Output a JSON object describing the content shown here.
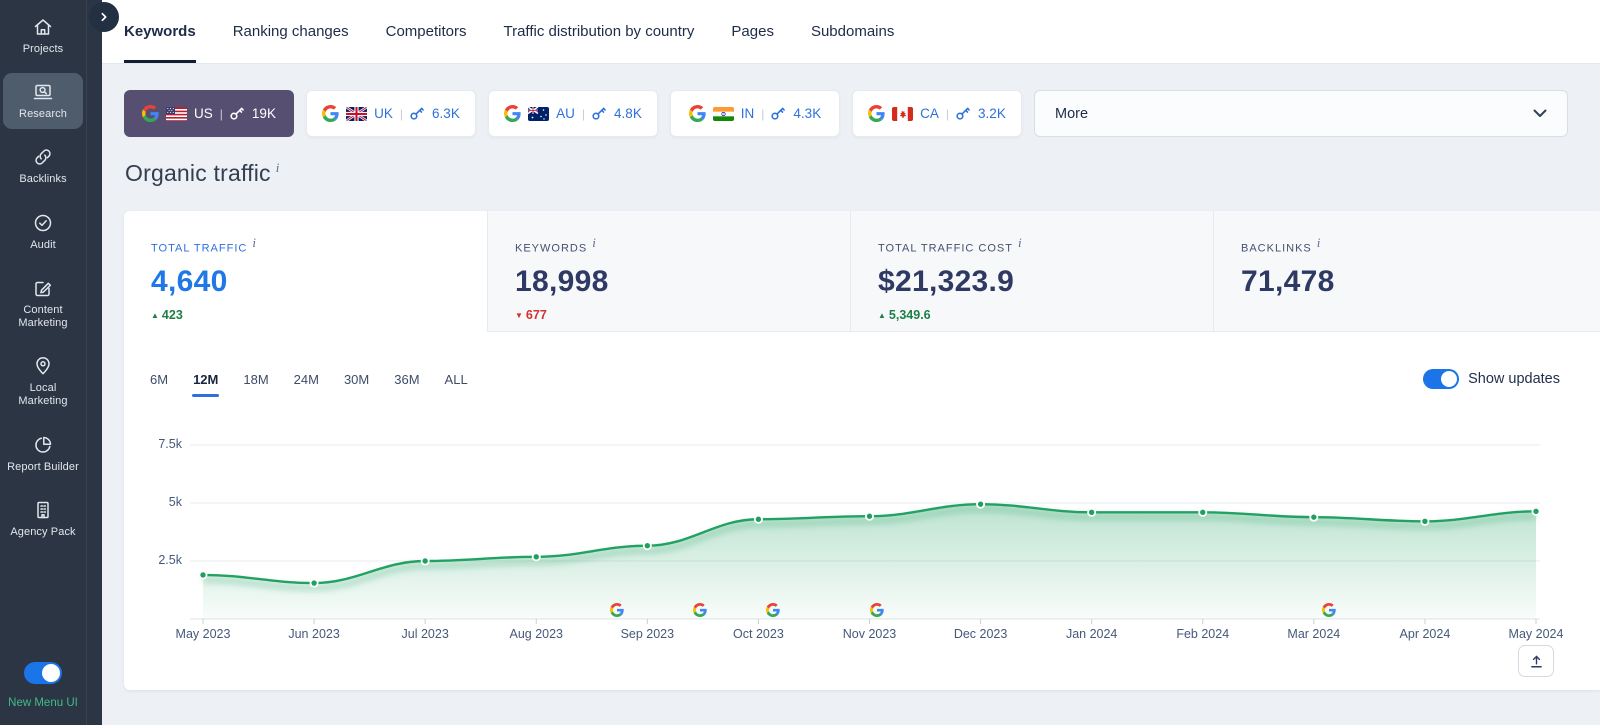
{
  "colors": {
    "sidebar_bg": "#2b3543",
    "sidebar_active_item_bg": "#4e5c6c",
    "accent_blue": "#1f78e6",
    "toggle_blue": "#1b74e8",
    "selected_country_bg": "#574f71",
    "chart_line_green": "#22a163",
    "positive_green": "#1e7e46",
    "negative_red": "#d62f2f",
    "new_menu_label_green": "#3fbd8a"
  },
  "sidebar": {
    "items": [
      {
        "label": "Projects",
        "icon": "home-icon",
        "active": false
      },
      {
        "label": "Research",
        "icon": "research-icon",
        "active": true
      },
      {
        "label": "Backlinks",
        "icon": "link-icon",
        "active": false
      },
      {
        "label": "Audit",
        "icon": "audit-check-icon",
        "active": false
      },
      {
        "label": "Content Marketing",
        "icon": "content-pen-icon",
        "active": false
      },
      {
        "label": "Local Marketing",
        "icon": "map-pin-icon",
        "active": false
      },
      {
        "label": "Report Builder",
        "icon": "pie-chart-icon",
        "active": false
      },
      {
        "label": "Agency Pack",
        "icon": "building-icon",
        "active": false
      }
    ],
    "new_menu_toggle": {
      "label": "New Menu UI",
      "state": "on"
    }
  },
  "topnav": {
    "tabs": [
      {
        "label": "Keywords",
        "active": true
      },
      {
        "label": "Ranking changes",
        "active": false
      },
      {
        "label": "Competitors",
        "active": false
      },
      {
        "label": "Traffic distribution by country",
        "active": false
      },
      {
        "label": "Pages",
        "active": false
      },
      {
        "label": "Subdomains",
        "active": false
      }
    ]
  },
  "filters": {
    "countries": [
      {
        "code": "US",
        "count": "19K",
        "selected": true
      },
      {
        "code": "UK",
        "count": "6.3K",
        "selected": false
      },
      {
        "code": "AU",
        "count": "4.8K",
        "selected": false
      },
      {
        "code": "IN",
        "count": "4.3K",
        "selected": false
      },
      {
        "code": "CA",
        "count": "3.2K",
        "selected": false
      }
    ],
    "separator": "|",
    "more_label": "More"
  },
  "page": {
    "title": "Organic traffic",
    "info_glyph": "i"
  },
  "stats": [
    {
      "label": "TOTAL TRAFFIC",
      "value": "4,640",
      "change": "423",
      "direction": "up",
      "selected": true
    },
    {
      "label": "KEYWORDS",
      "value": "18,998",
      "change": "677",
      "direction": "down",
      "selected": false
    },
    {
      "label": "TOTAL TRAFFIC COST",
      "value": "$21,323.9",
      "change": "5,349.6",
      "direction": "up",
      "selected": false
    },
    {
      "label": "BACKLINKS",
      "value": "71,478",
      "change": "",
      "direction": "",
      "selected": false
    }
  ],
  "chart_controls": {
    "ranges": [
      "6M",
      "12M",
      "18M",
      "24M",
      "30M",
      "36M",
      "ALL"
    ],
    "active_range": "12M",
    "show_updates_label": "Show updates",
    "show_updates_on": true
  },
  "chart_data": {
    "type": "area",
    "title": "Organic traffic",
    "x": [
      "May 2023",
      "Jun 2023",
      "Jul 2023",
      "Aug 2023",
      "Sep 2023",
      "Oct 2023",
      "Nov 2023",
      "Dec 2023",
      "Jan 2024",
      "Feb 2024",
      "Mar 2024",
      "Apr 2024",
      "May 2024"
    ],
    "series": [
      {
        "name": "Organic traffic",
        "values": [
          1900,
          1550,
          2500,
          2680,
          3160,
          4300,
          4430,
          4950,
          4600,
          4600,
          4390,
          4210,
          4640
        ]
      }
    ],
    "ylim": [
      0,
      7500
    ],
    "yticks": [
      {
        "label": "2.5k",
        "value": 2500
      },
      {
        "label": "5k",
        "value": 5000
      },
      {
        "label": "7.5k",
        "value": 7500
      }
    ],
    "grid": true,
    "legend": "none",
    "google_update_positions": [
      0.316,
      0.378,
      0.432,
      0.509,
      0.844
    ]
  }
}
